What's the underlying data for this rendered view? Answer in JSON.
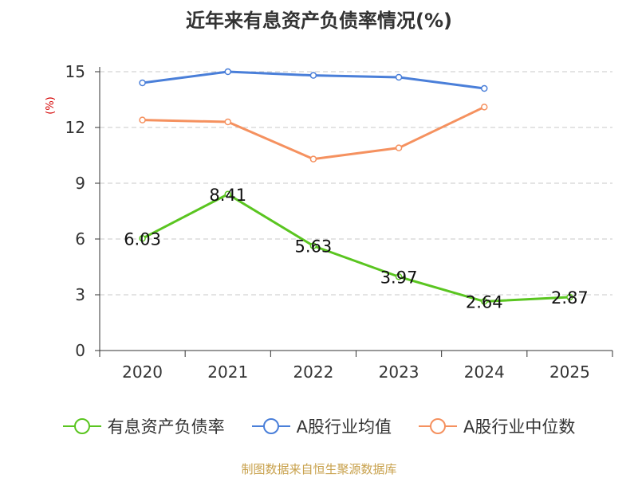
{
  "title": "近年来有息资产负债率情况(%)",
  "source": "制图数据来自恒生聚源数据库",
  "chart_data": {
    "type": "line",
    "ylabel": "(%)",
    "categories": [
      "2020",
      "2021",
      "2022",
      "2023",
      "2024",
      "2025"
    ],
    "y_ticks": [
      "0",
      "3",
      "6",
      "9",
      "12",
      "15"
    ],
    "ylim": [
      0,
      15
    ],
    "grid": "horizontal dashed",
    "legend_position": "bottom",
    "series": [
      {
        "name": "有息资产负债率",
        "color": "#5ac520",
        "values": [
          6.03,
          8.41,
          5.63,
          3.97,
          2.64,
          2.87
        ],
        "data_labels": [
          "6.03",
          "8.41",
          "5.63",
          "3.97",
          "2.64",
          "2.87"
        ]
      },
      {
        "name": "A股行业均值",
        "color": "#4a7fd9",
        "values": [
          14.4,
          15.0,
          14.8,
          14.7,
          14.1,
          null
        ]
      },
      {
        "name": "A股行业中位数",
        "color": "#f5915f",
        "values": [
          12.4,
          12.3,
          10.3,
          10.9,
          13.1,
          null
        ]
      }
    ]
  }
}
